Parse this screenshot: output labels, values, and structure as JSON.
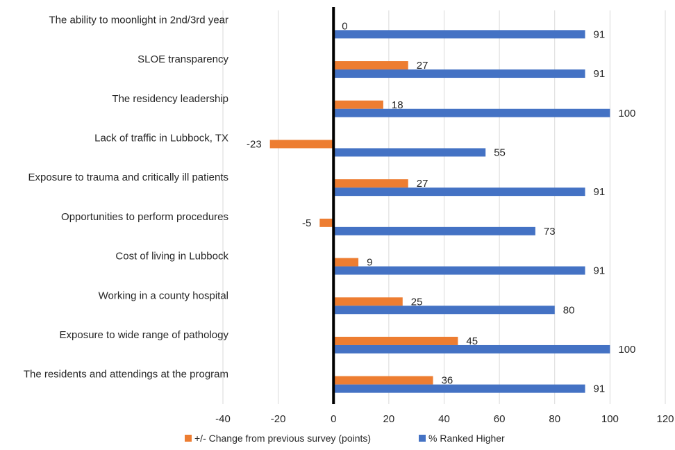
{
  "chart_data": {
    "type": "bar",
    "orientation": "horizontal",
    "categories": [
      "The ability to moonlight in 2nd/3rd year",
      "SLOE transparency",
      "The residency leadership",
      "Lack of traffic in Lubbock, TX",
      "Exposure to trauma and critically ill patients",
      "Opportunities to perform procedures",
      "Cost of living in Lubbock",
      "Working in a county hospital",
      "Exposure to wide range of pathology",
      "The residents and attendings at the program"
    ],
    "series": [
      {
        "name": "+/- Change from previous survey (points)",
        "color": "#ED7D31",
        "values": [
          0,
          27,
          18,
          -23,
          27,
          -5,
          9,
          25,
          45,
          36
        ]
      },
      {
        "name": "% Ranked Higher",
        "color": "#4472C4",
        "values": [
          91,
          91,
          100,
          55,
          91,
          73,
          91,
          80,
          100,
          91
        ]
      }
    ],
    "xlim": [
      -40,
      120
    ],
    "xticks": [
      -40,
      -20,
      0,
      20,
      40,
      60,
      80,
      100,
      120
    ],
    "xtick_labels": [
      "-40",
      "-20",
      "0",
      "20",
      "40",
      "60",
      "80",
      "100",
      "120"
    ],
    "data_labels": true,
    "grid": "vertical",
    "legend_position": "bottom",
    "title": "",
    "xlabel": "",
    "ylabel": ""
  }
}
